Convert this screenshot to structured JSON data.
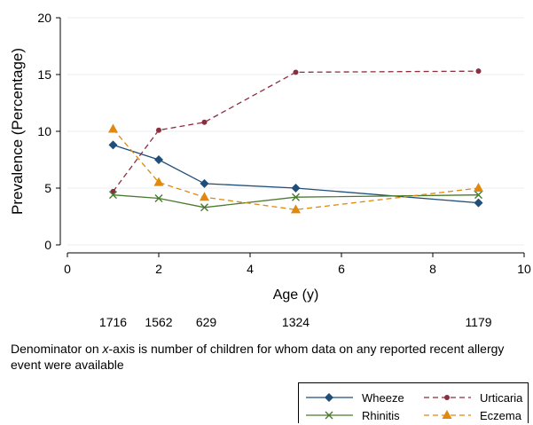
{
  "chart_data": {
    "type": "line",
    "xlabel": "Age (y)",
    "ylabel": "Prevalence (Percentage)",
    "xlim": [
      0,
      10
    ],
    "ylim": [
      0,
      20
    ],
    "x_ticks": [
      0,
      2,
      4,
      6,
      8,
      10
    ],
    "y_ticks": [
      0,
      5,
      10,
      15,
      20
    ],
    "grid": "horizontal",
    "series": [
      {
        "name": "Wheeze",
        "color": "#1f4e79",
        "marker": "diamond",
        "dash": "solid",
        "x": [
          1,
          2,
          3,
          5,
          9
        ],
        "values": [
          8.8,
          7.5,
          5.4,
          5.0,
          3.7
        ]
      },
      {
        "name": "Urticaria",
        "color": "#8b2e3f",
        "marker": "circle",
        "dash": "dashed",
        "x": [
          1,
          2,
          3,
          5,
          9
        ],
        "values": [
          4.7,
          10.1,
          10.8,
          15.2,
          15.3
        ]
      },
      {
        "name": "Rhinitis",
        "color": "#4a7a2e",
        "marker": "x",
        "dash": "solid",
        "x": [
          1,
          2,
          3,
          5,
          9
        ],
        "values": [
          4.4,
          4.1,
          3.3,
          4.2,
          4.4
        ]
      },
      {
        "name": "Eczema",
        "color": "#e0890c",
        "marker": "triangle",
        "dash": "dashed",
        "x": [
          1,
          2,
          3,
          5,
          9
        ],
        "values": [
          10.2,
          5.5,
          4.2,
          3.1,
          5.0
        ]
      }
    ],
    "denominators": [
      {
        "x": 1,
        "label": "1716"
      },
      {
        "x": 2,
        "label": "1562"
      },
      {
        "x": 3,
        "label": "629"
      },
      {
        "x": 5,
        "label": "1324"
      },
      {
        "x": 9,
        "label": "1179"
      }
    ],
    "legend_position": "bottom-right"
  },
  "note": {
    "pre": "Denominator on ",
    "em": "x",
    "post": "-axis is number of children for whom data on any reported recent allergy event were available"
  }
}
